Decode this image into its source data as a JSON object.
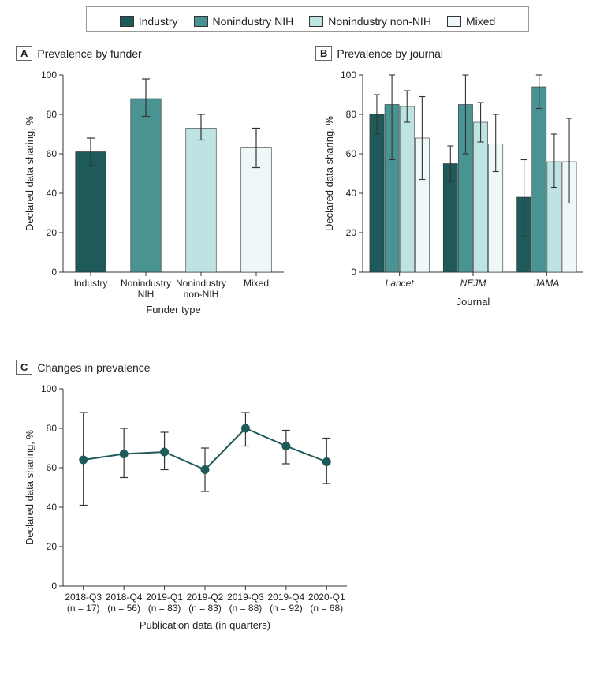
{
  "colors": {
    "industry": "#1f5a5a",
    "nih": "#4a9393",
    "nonnih": "#bde3e3",
    "mixed": "#eef8f8",
    "stroke": "#333333",
    "axis": "#333333",
    "error": "#333333",
    "line": "#1f5a5a",
    "bg": "#ffffff"
  },
  "legend": {
    "items": [
      {
        "label": "Industry",
        "colorKey": "industry"
      },
      {
        "label": "Nonindustry NIH",
        "colorKey": "nih"
      },
      {
        "label": "Nonindustry non-NIH",
        "colorKey": "nonnih"
      },
      {
        "label": "Mixed",
        "colorKey": "mixed"
      }
    ]
  },
  "panelA": {
    "letter": "A",
    "title": "Prevalence by funder",
    "ylabel": "Declared data sharing, %",
    "xlabel": "Funder type",
    "ylim": [
      0,
      100
    ],
    "ytick_step": 20,
    "categories": [
      "Industry",
      "Nonindustry NIH",
      "Nonindustry non-NIH",
      "Mixed"
    ],
    "bars": [
      {
        "value": 61,
        "err_low": 54,
        "err_high": 68,
        "colorKey": "industry"
      },
      {
        "value": 88,
        "err_low": 79,
        "err_high": 98,
        "colorKey": "nih"
      },
      {
        "value": 73,
        "err_low": 67,
        "err_high": 80,
        "colorKey": "nonnih"
      },
      {
        "value": 63,
        "err_low": 53,
        "err_high": 73,
        "colorKey": "mixed"
      }
    ],
    "bar_width": 0.55
  },
  "panelB": {
    "letter": "B",
    "title": "Prevalence by journal",
    "ylabel": "Declared data sharing, %",
    "xlabel": "Journal",
    "ylim": [
      0,
      100
    ],
    "ytick_step": 20,
    "groups": [
      "Lancet",
      "NEJM",
      "JAMA"
    ],
    "groups_italic": true,
    "series": [
      {
        "colorKey": "industry",
        "values": [
          80,
          55,
          38
        ],
        "err_low": [
          70,
          46,
          18
        ],
        "err_high": [
          90,
          64,
          57
        ]
      },
      {
        "colorKey": "nih",
        "values": [
          85,
          85,
          94
        ],
        "err_low": [
          57,
          60,
          83
        ],
        "err_high": [
          100,
          100,
          100
        ]
      },
      {
        "colorKey": "nonnih",
        "values": [
          84,
          76,
          56
        ],
        "err_low": [
          76,
          66,
          43
        ],
        "err_high": [
          92,
          86,
          70
        ]
      },
      {
        "colorKey": "mixed",
        "values": [
          68,
          65,
          56
        ],
        "err_low": [
          47,
          51,
          35
        ],
        "err_high": [
          89,
          80,
          78
        ]
      }
    ],
    "bar_width": 0.18
  },
  "panelC": {
    "letter": "C",
    "title": "Changes in prevalence",
    "ylabel": "Declared data sharing, %",
    "xlabel": "Publication data (in quarters)",
    "ylim": [
      0,
      100
    ],
    "ytick_step": 20,
    "categories": [
      "2018-Q3",
      "2018-Q4",
      "2019-Q1",
      "2019-Q2",
      "2019-Q3",
      "2019-Q4",
      "2020-Q1"
    ],
    "n_labels": [
      "(n = 17)",
      "(n = 56)",
      "(n = 83)",
      "(n = 83)",
      "(n = 88)",
      "(n = 92)",
      "(n = 68)"
    ],
    "points": [
      {
        "value": 64,
        "err_low": 41,
        "err_high": 88
      },
      {
        "value": 67,
        "err_low": 55,
        "err_high": 80
      },
      {
        "value": 68,
        "err_low": 59,
        "err_high": 78
      },
      {
        "value": 59,
        "err_low": 48,
        "err_high": 70
      },
      {
        "value": 80,
        "err_low": 71,
        "err_high": 88
      },
      {
        "value": 71,
        "err_low": 62,
        "err_high": 79
      },
      {
        "value": 63,
        "err_low": 52,
        "err_high": 75
      }
    ],
    "marker_radius": 5
  },
  "fontSizes": {
    "tick": 12,
    "axis_label": 13,
    "panel_title": 14
  }
}
